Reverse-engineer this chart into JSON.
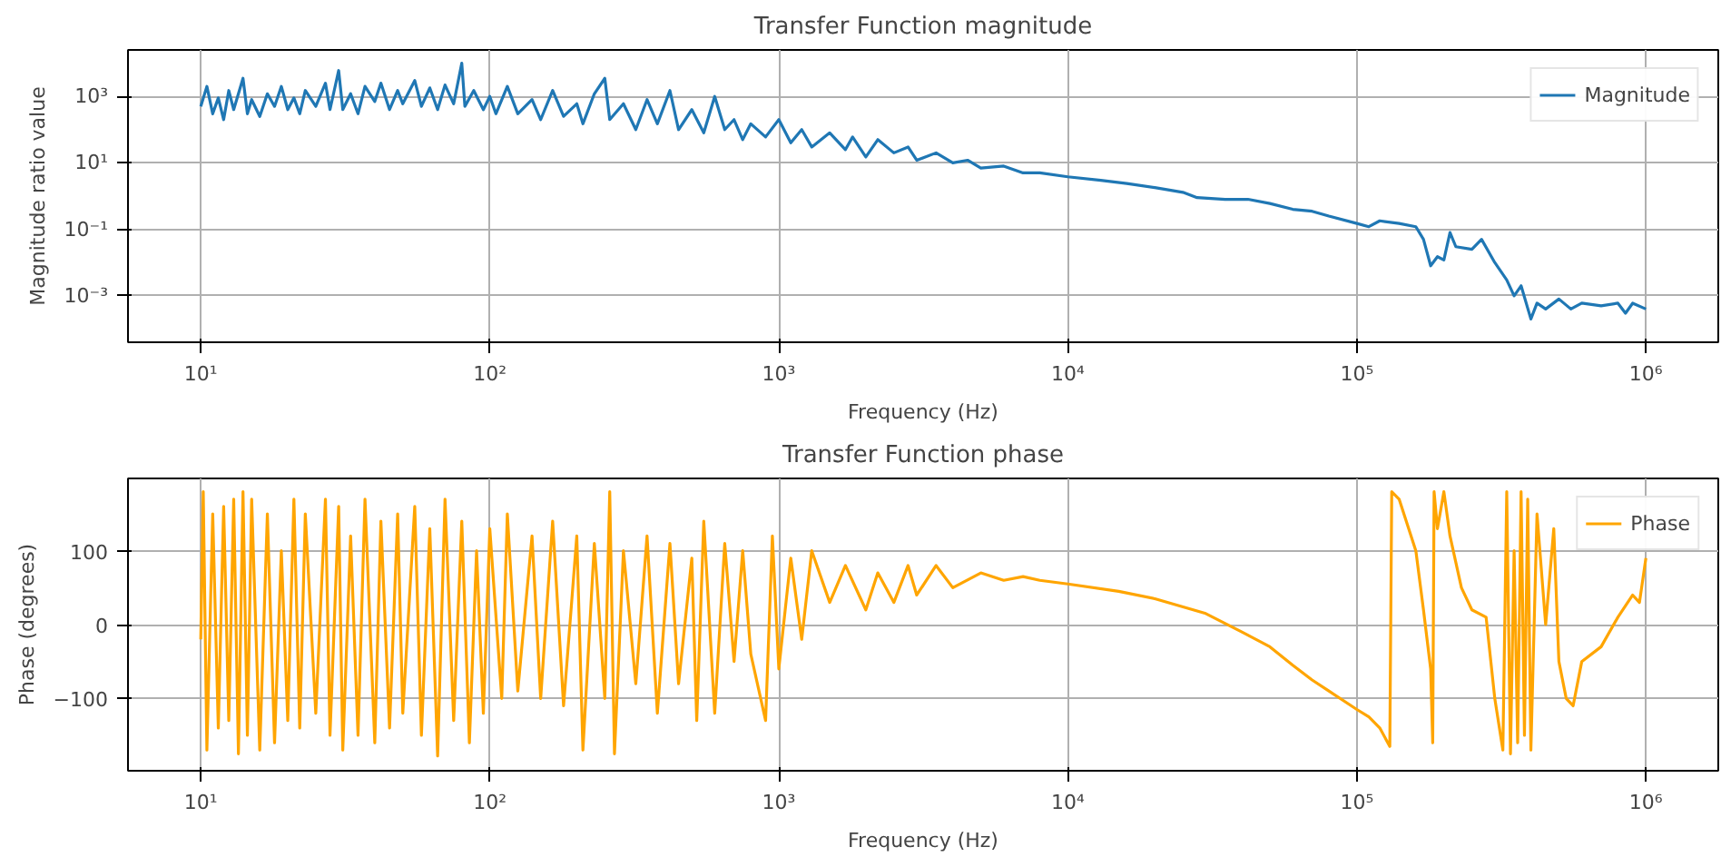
{
  "chart_data": [
    {
      "type": "line",
      "title": "Transfer Function magnitude",
      "xlabel": "Frequency (Hz)",
      "ylabel": "Magnitude ratio value",
      "log": "xy",
      "grid": true,
      "legend": "top right",
      "xlim": [
        5.6,
        1780000.0
      ],
      "ylim": [
        4e-05,
        25000.0
      ],
      "xticks": [
        {
          "value": 10,
          "label": "10¹"
        },
        {
          "value": 100,
          "label": "10²"
        },
        {
          "value": 1000,
          "label": "10³"
        },
        {
          "value": 10000,
          "label": "10⁴"
        },
        {
          "value": 100000,
          "label": "10⁵"
        },
        {
          "value": 1000000,
          "label": "10⁶"
        }
      ],
      "yticks": [
        {
          "value": 0.001,
          "label": "10⁻³"
        },
        {
          "value": 0.1,
          "label": "10⁻¹"
        },
        {
          "value": 10,
          "label": "10¹"
        },
        {
          "value": 1000,
          "label": "10³"
        }
      ],
      "series": [
        {
          "name": "Magnitude",
          "color": "#1f77b4",
          "x": [
            10,
            10.5,
            11,
            11.5,
            12,
            12.5,
            13,
            14,
            14.5,
            15,
            16,
            17,
            18,
            19,
            20,
            21,
            22,
            23,
            25,
            27,
            28,
            30,
            31,
            33,
            35,
            37,
            40,
            42,
            45,
            48,
            50,
            55,
            58,
            62,
            66,
            70,
            75,
            80,
            82,
            88,
            95,
            100,
            105,
            115,
            125,
            140,
            150,
            165,
            180,
            200,
            210,
            230,
            250,
            260,
            290,
            320,
            350,
            380,
            420,
            450,
            500,
            550,
            600,
            650,
            700,
            750,
            800,
            900,
            1000,
            1100,
            1200,
            1300,
            1500,
            1700,
            1800,
            2000,
            2200,
            2500,
            2800,
            3000,
            3500,
            4000,
            4500,
            5000,
            6000,
            7000,
            8000,
            10000,
            13000,
            16000,
            20000,
            25000,
            28000,
            35000,
            42000,
            50000,
            60000,
            70000,
            80000,
            100000,
            110000,
            120000,
            140000,
            160000,
            170000,
            180000,
            190000,
            200000,
            210000,
            220000,
            250000,
            270000,
            300000,
            330000,
            350000,
            370000,
            400000,
            420000,
            450000,
            500000,
            550000,
            600000,
            700000,
            800000,
            850000,
            900000,
            1000000
          ],
          "values": [
            500,
            2000,
            300,
            900,
            200,
            1500,
            400,
            3500,
            300,
            800,
            250,
            1200,
            500,
            2000,
            400,
            900,
            300,
            1500,
            500,
            2500,
            400,
            6000,
            400,
            1200,
            300,
            2000,
            700,
            2500,
            400,
            1500,
            600,
            3000,
            500,
            1800,
            400,
            2200,
            600,
            10000,
            500,
            1500,
            400,
            1000,
            300,
            2000,
            300,
            800,
            200,
            1500,
            250,
            600,
            150,
            1200,
            3500,
            200,
            600,
            100,
            800,
            150,
            1500,
            100,
            400,
            80,
            1000,
            100,
            200,
            50,
            150,
            60,
            200,
            40,
            100,
            30,
            80,
            25,
            60,
            15,
            50,
            20,
            30,
            12,
            20,
            10,
            12,
            7,
            8,
            5,
            5,
            3.8,
            3,
            2.4,
            1.8,
            1.3,
            0.9,
            0.8,
            0.8,
            0.6,
            0.4,
            0.35,
            0.25,
            0.15,
            0.12,
            0.18,
            0.15,
            0.12,
            0.05,
            0.008,
            0.015,
            0.012,
            0.08,
            0.03,
            0.025,
            0.05,
            0.01,
            0.003,
            0.001,
            0.002,
            0.0002,
            0.0006,
            0.0004,
            0.0008,
            0.0004,
            0.0006,
            0.0005,
            0.0006,
            0.0003,
            0.0006,
            0.0004
          ]
        }
      ]
    },
    {
      "type": "line",
      "title": "Transfer Function phase",
      "xlabel": "Frequency (Hz)",
      "ylabel": "Phase (degrees)",
      "log": "x",
      "grid": true,
      "legend": "top right",
      "xlim": [
        5.6,
        1780000.0
      ],
      "ylim": [
        -198,
        198
      ],
      "xticks": [
        {
          "value": 10,
          "label": "10¹"
        },
        {
          "value": 100,
          "label": "10²"
        },
        {
          "value": 1000,
          "label": "10³"
        },
        {
          "value": 10000,
          "label": "10⁴"
        },
        {
          "value": 100000,
          "label": "10⁵"
        },
        {
          "value": 1000000,
          "label": "10⁶"
        }
      ],
      "yticks": [
        {
          "value": -100,
          "label": "−100"
        },
        0,
        100
      ],
      "series": [
        {
          "name": "Phase",
          "color": "#ffa500",
          "x": [
            10,
            10.2,
            10.5,
            11,
            11.5,
            12,
            12.5,
            13,
            13.5,
            14,
            14.5,
            15,
            16,
            17,
            18,
            19,
            20,
            21,
            22,
            23,
            25,
            27,
            28,
            30,
            31,
            33,
            35,
            37,
            40,
            42,
            45,
            48,
            50,
            55,
            58,
            62,
            66,
            70,
            75,
            80,
            85,
            90,
            95,
            100,
            110,
            115,
            125,
            140,
            150,
            165,
            180,
            200,
            210,
            230,
            250,
            260,
            270,
            290,
            320,
            350,
            380,
            420,
            450,
            500,
            520,
            550,
            600,
            650,
            700,
            750,
            800,
            900,
            950,
            1000,
            1100,
            1200,
            1300,
            1500,
            1700,
            2000,
            2200,
            2500,
            2800,
            3000,
            3500,
            4000,
            5000,
            6000,
            7000,
            8000,
            10000,
            15000,
            20000,
            30000,
            40000,
            50000,
            60000,
            70000,
            80000,
            100000,
            110000,
            120000,
            130000,
            132000,
            140000,
            160000,
            170000,
            180000,
            183000,
            185000,
            190000,
            200000,
            210000,
            230000,
            250000,
            280000,
            300000,
            320000,
            330000,
            340000,
            350000,
            360000,
            370000,
            380000,
            390000,
            400000,
            420000,
            450000,
            480000,
            500000,
            530000,
            560000,
            600000,
            700000,
            800000,
            900000,
            950000,
            1000000
          ],
          "values": [
            -20,
            180,
            -170,
            150,
            -140,
            160,
            -130,
            170,
            -175,
            180,
            -150,
            170,
            -170,
            150,
            -160,
            100,
            -130,
            170,
            -140,
            150,
            -120,
            170,
            -150,
            160,
            -170,
            120,
            -150,
            170,
            -160,
            140,
            -140,
            150,
            -120,
            160,
            -150,
            130,
            -178,
            170,
            -130,
            140,
            -160,
            100,
            -120,
            130,
            -100,
            150,
            -90,
            120,
            -100,
            140,
            -110,
            120,
            -170,
            110,
            -100,
            180,
            -175,
            100,
            -80,
            120,
            -120,
            110,
            -80,
            90,
            -130,
            140,
            -120,
            110,
            -50,
            100,
            -40,
            -130,
            120,
            -60,
            90,
            -20,
            100,
            30,
            80,
            20,
            70,
            30,
            80,
            40,
            80,
            50,
            70,
            60,
            65,
            60,
            55,
            45,
            35,
            15,
            -10,
            -30,
            -55,
            -75,
            -90,
            -115,
            -125,
            -140,
            -165,
            180,
            170,
            100,
            20,
            -60,
            -160,
            180,
            130,
            180,
            120,
            50,
            20,
            10,
            -100,
            -170,
            180,
            -175,
            100,
            -160,
            180,
            -150,
            170,
            -170,
            150,
            0,
            130,
            -50,
            -100,
            -110,
            -50,
            -30,
            10,
            40,
            30,
            90
          ]
        }
      ]
    }
  ]
}
